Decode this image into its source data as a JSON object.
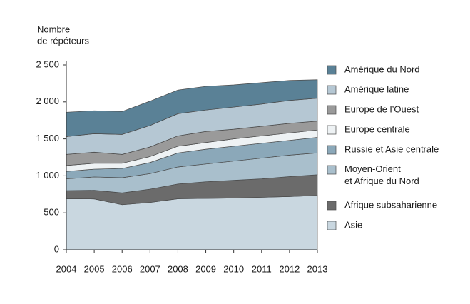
{
  "chart_data": {
    "type": "stacked_area",
    "ylabel": [
      "Nombre",
      "de répéteurs"
    ],
    "categories": [
      "2004",
      "2005",
      "2006",
      "2007",
      "2008",
      "2009",
      "2010",
      "2011",
      "2012",
      "2013"
    ],
    "series": [
      {
        "name": "Asie",
        "color": "#c9d7e0",
        "values": [
          690,
          688,
          610,
          640,
          690,
          695,
          700,
          710,
          720,
          735
        ]
      },
      {
        "name": "Afrique subsaharienne",
        "color": "#6b6b6b",
        "values": [
          110,
          117,
          160,
          180,
          200,
          225,
          240,
          250,
          270,
          280
        ]
      },
      {
        "name": "Moyen-Orient\net Afrique du Nord",
        "color": "#a9bfcc",
        "values": [
          160,
          180,
          205,
          210,
          230,
          240,
          260,
          280,
          290,
          295
        ]
      },
      {
        "name": "Russie et Asie centrale",
        "color": "#8ba8b9",
        "values": [
          100,
          105,
          125,
          150,
          190,
          200,
          200,
          200,
          200,
          210
        ]
      },
      {
        "name": "Europe centrale",
        "color": "#eef2f4",
        "values": [
          80,
          80,
          70,
          80,
          90,
          90,
          100,
          100,
          100,
          100
        ]
      },
      {
        "name": "Europe de l’Ouest",
        "color": "#9a9a9a",
        "values": [
          150,
          150,
          120,
          130,
          140,
          150,
          130,
          130,
          130,
          120
        ]
      },
      {
        "name": "Amérique latine",
        "color": "#b5c7d3",
        "values": [
          240,
          250,
          270,
          290,
          300,
          290,
          300,
          300,
          310,
          310
        ]
      },
      {
        "name": "Amérique du Nord",
        "color": "#5a8196",
        "values": [
          330,
          310,
          310,
          330,
          320,
          320,
          300,
          290,
          270,
          250
        ]
      }
    ],
    "ylim": [
      0,
      2500
    ],
    "yticks": [
      0,
      500,
      {
        "value": 1000,
        "label": "1 000"
      },
      {
        "value": 1500,
        "label": "1 500"
      },
      {
        "value": 2000,
        "label": "2 000"
      },
      {
        "value": 2500,
        "label": "2 500"
      }
    ],
    "legend": "right"
  }
}
